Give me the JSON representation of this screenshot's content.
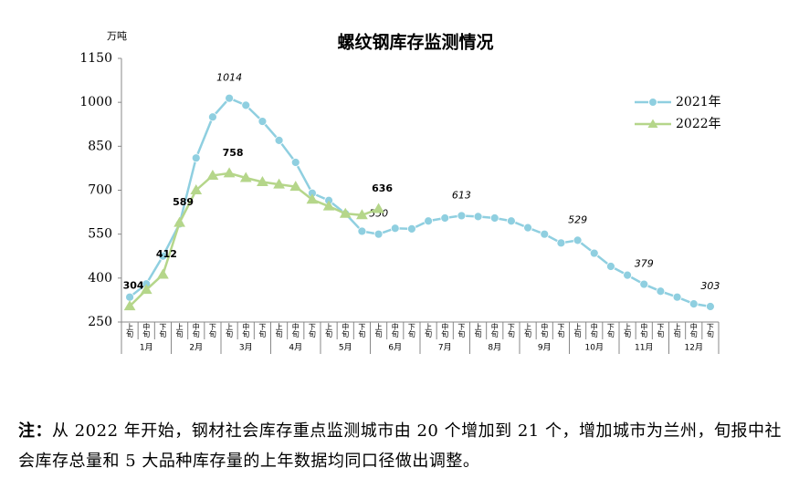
{
  "chart_data": {
    "type": "line",
    "title": "螺纹钢库存监测情况",
    "y_unit": "万吨",
    "categories": [
      "上旬",
      "中旬",
      "下旬",
      "上旬",
      "中旬",
      "下旬",
      "上旬",
      "中旬",
      "下旬",
      "上旬",
      "中旬",
      "下旬",
      "上旬",
      "中旬",
      "下旬",
      "上旬",
      "中旬",
      "下旬",
      "上旬",
      "中旬",
      "下旬",
      "上旬",
      "中旬",
      "下旬",
      "上旬",
      "中旬",
      "下旬",
      "上旬",
      "中旬",
      "下旬",
      "上旬",
      "中旬",
      "下旬",
      "上旬",
      "中旬",
      "下旬"
    ],
    "months": [
      "1月",
      "2月",
      "3月",
      "4月",
      "5月",
      "6月",
      "7月",
      "8月",
      "9月",
      "10月",
      "11月",
      "12月"
    ],
    "ylim": [
      250,
      1150
    ],
    "yticks": [
      250,
      400,
      550,
      700,
      850,
      1000,
      1150
    ],
    "grid": false,
    "legend": "upper right",
    "series": [
      {
        "name": "2021年",
        "color": "#8fcfe0",
        "marker": "circle",
        "values": [
          335,
          380,
          475,
          585,
          810,
          950,
          1014,
          990,
          935,
          870,
          795,
          690,
          665,
          620,
          560,
          550,
          570,
          568,
          595,
          605,
          613,
          610,
          605,
          595,
          572,
          550,
          520,
          529,
          485,
          440,
          410,
          379,
          355,
          335,
          312,
          303
        ],
        "value_labels": [
          null,
          null,
          null,
          null,
          null,
          null,
          "1014",
          null,
          null,
          null,
          null,
          null,
          null,
          null,
          null,
          "550",
          null,
          null,
          null,
          null,
          "613",
          null,
          null,
          null,
          null,
          null,
          null,
          "529",
          null,
          null,
          null,
          "379",
          null,
          null,
          null,
          "303"
        ]
      },
      {
        "name": "2022年",
        "color": "#b5d68a",
        "marker": "triangle",
        "values": [
          304,
          360,
          412,
          589,
          700,
          750,
          758,
          742,
          728,
          720,
          712,
          668,
          645,
          620,
          615,
          636,
          null,
          null,
          null,
          null,
          null,
          null,
          null,
          null,
          null,
          null,
          null,
          null,
          null,
          null,
          null,
          null,
          null,
          null,
          null,
          null
        ],
        "value_labels": [
          "304",
          null,
          "412",
          "589",
          null,
          null,
          "758",
          null,
          null,
          null,
          null,
          null,
          null,
          null,
          null,
          "636",
          null,
          null,
          null,
          null,
          null,
          null,
          null,
          null,
          null,
          null,
          null,
          null,
          null,
          null,
          null,
          null,
          null,
          null,
          null,
          null
        ]
      }
    ]
  },
  "note": {
    "label": "注：",
    "text": "从 2022 年开始，钢材社会库存重点监测城市由 20 个增加到 21 个，增加城市为兰州，旬报中社会库存总量和 5 大品种库存量的上年数据均同口径做出调整。"
  }
}
